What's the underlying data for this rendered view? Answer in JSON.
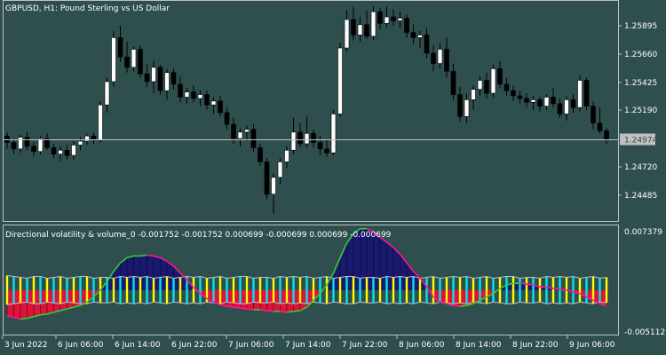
{
  "main_title": "GBPUSD, H1:  Pound Sterling vs US Dollar",
  "sub_title": "Directional volatility & volume_0 -0.001752 -0.001752 0.000699 -0.000699 0.000699 -0.000699",
  "colors": {
    "background": "#2f4f4f",
    "grid_frame": "#c0c0c0",
    "bull_candle": "#ffffff",
    "bear_candle": "#000000",
    "bid_line": "#c0c0c0",
    "price_tag_bg": "#c0c0c0",
    "price_tag_text": "#2f4f4f",
    "positive_fill": "#191970",
    "negative_fill": "#dc143c",
    "hist_up": "#ffff00",
    "hist_down": "#00e5ee",
    "volatility_up": "#32cd32",
    "volatility_down": "#ff1493",
    "band_edge": "#c0c0c0"
  },
  "price_axis": {
    "ticks": [
      "1.25895",
      "1.25660",
      "1.25425",
      "1.25190",
      "1.24720",
      "1.24485"
    ],
    "current_price": "1.24974"
  },
  "indicator_axis": {
    "top": "0.007379",
    "bottom": "-0.005112"
  },
  "time_axis": {
    "labels": [
      "3 Jun 2022",
      "6 Jun 06:00",
      "6 Jun 14:00",
      "6 Jun 22:00",
      "7 Jun 06:00",
      "7 Jun 14:00",
      "7 Jun 22:00",
      "8 Jun 06:00",
      "8 Jun 14:00",
      "8 Jun 22:00",
      "9 Jun 06:00"
    ]
  },
  "chart_data": {
    "type": "candlestick",
    "symbol": "GBPUSD",
    "timeframe": "H1",
    "price_range": [
      1.2435,
      1.2603
    ],
    "candles": [
      [
        1.25,
        1.2503,
        1.249,
        1.2495
      ],
      [
        1.2495,
        1.2498,
        1.2486,
        1.249
      ],
      [
        1.249,
        1.2501,
        1.2487,
        1.2499
      ],
      [
        1.2499,
        1.2503,
        1.2489,
        1.2492
      ],
      [
        1.2492,
        1.2495,
        1.2484,
        1.2488
      ],
      [
        1.2488,
        1.25,
        1.2486,
        1.2498
      ],
      [
        1.2498,
        1.2502,
        1.2489,
        1.2491
      ],
      [
        1.2491,
        1.2494,
        1.2483,
        1.2486
      ],
      [
        1.2486,
        1.2492,
        1.248,
        1.2489
      ],
      [
        1.2489,
        1.2493,
        1.2482,
        1.2485
      ],
      [
        1.2485,
        1.2496,
        1.2482,
        1.2493
      ],
      [
        1.2493,
        1.2499,
        1.2489,
        1.2496
      ],
      [
        1.2496,
        1.2502,
        1.2493,
        1.25
      ],
      [
        1.25,
        1.2503,
        1.2494,
        1.2497
      ],
      [
        1.2497,
        1.2527,
        1.2495,
        1.2524
      ],
      [
        1.2524,
        1.2545,
        1.2518,
        1.2542
      ],
      [
        1.2542,
        1.2581,
        1.2538,
        1.2576
      ],
      [
        1.2576,
        1.2585,
        1.2557,
        1.2561
      ],
      [
        1.2561,
        1.2573,
        1.2549,
        1.2553
      ],
      [
        1.2553,
        1.2569,
        1.255,
        1.2567
      ],
      [
        1.2567,
        1.257,
        1.2545,
        1.2548
      ],
      [
        1.2548,
        1.2556,
        1.2538,
        1.2542
      ],
      [
        1.2542,
        1.2558,
        1.2533,
        1.2553
      ],
      [
        1.2553,
        1.2555,
        1.2532,
        1.2535
      ],
      [
        1.2535,
        1.2552,
        1.2528,
        1.2549
      ],
      [
        1.2549,
        1.2552,
        1.2536,
        1.254
      ],
      [
        1.254,
        1.2546,
        1.2526,
        1.253
      ],
      [
        1.253,
        1.2537,
        1.2525,
        1.2534
      ],
      [
        1.2534,
        1.2539,
        1.2526,
        1.2529
      ],
      [
        1.2529,
        1.2535,
        1.2523,
        1.2532
      ],
      [
        1.2532,
        1.2535,
        1.252,
        1.2524
      ],
      [
        1.2524,
        1.253,
        1.2517,
        1.2527
      ],
      [
        1.2527,
        1.2531,
        1.2515,
        1.2518
      ],
      [
        1.2518,
        1.2522,
        1.2505,
        1.2509
      ],
      [
        1.2509,
        1.2514,
        1.2494,
        1.2498
      ],
      [
        1.2498,
        1.2506,
        1.2492,
        1.2503
      ],
      [
        1.2503,
        1.2508,
        1.2496,
        1.2505
      ],
      [
        1.2505,
        1.2509,
        1.2488,
        1.2491
      ],
      [
        1.2491,
        1.2494,
        1.2477,
        1.248
      ],
      [
        1.248,
        1.2483,
        1.2451,
        1.2455
      ],
      [
        1.2455,
        1.2471,
        1.244,
        1.2468
      ],
      [
        1.2468,
        1.2483,
        1.2463,
        1.248
      ],
      [
        1.248,
        1.2492,
        1.2475,
        1.2489
      ],
      [
        1.2489,
        1.2514,
        1.2486,
        1.2503
      ],
      [
        1.2503,
        1.251,
        1.2491,
        1.2494
      ],
      [
        1.2494,
        1.2515,
        1.2491,
        1.2502
      ],
      [
        1.2502,
        1.2505,
        1.2491,
        1.2495
      ],
      [
        1.2495,
        1.25,
        1.2485,
        1.249
      ],
      [
        1.249,
        1.2497,
        1.2484,
        1.2487
      ],
      [
        1.2487,
        1.252,
        1.2485,
        1.2517
      ],
      [
        1.2517,
        1.2572,
        1.2515,
        1.2568
      ],
      [
        1.2568,
        1.2597,
        1.2565,
        1.259
      ],
      [
        1.259,
        1.26,
        1.2574,
        1.2578
      ],
      [
        1.2578,
        1.2592,
        1.2573,
        1.2586
      ],
      [
        1.2586,
        1.2597,
        1.2575,
        1.2577
      ],
      [
        1.2577,
        1.26,
        1.2574,
        1.2596
      ],
      [
        1.2596,
        1.2599,
        1.2582,
        1.2587
      ],
      [
        1.2587,
        1.26,
        1.2584,
        1.2592
      ],
      [
        1.2592,
        1.2598,
        1.2585,
        1.2589
      ],
      [
        1.2589,
        1.2596,
        1.2583,
        1.2591
      ],
      [
        1.2591,
        1.2594,
        1.2576,
        1.258
      ],
      [
        1.258,
        1.2586,
        1.2571,
        1.2576
      ],
      [
        1.2576,
        1.2581,
        1.2568,
        1.2578
      ],
      [
        1.2578,
        1.2583,
        1.256,
        1.2564
      ],
      [
        1.2564,
        1.257,
        1.255,
        1.2556
      ],
      [
        1.2556,
        1.2572,
        1.2552,
        1.2567
      ],
      [
        1.2567,
        1.2576,
        1.2545,
        1.255
      ],
      [
        1.255,
        1.2556,
        1.2528,
        1.2532
      ],
      [
        1.2532,
        1.2538,
        1.2511,
        1.2515
      ],
      [
        1.2515,
        1.2533,
        1.251,
        1.2528
      ],
      [
        1.2528,
        1.2539,
        1.252,
        1.2536
      ],
      [
        1.2536,
        1.2546,
        1.2531,
        1.2543
      ],
      [
        1.2543,
        1.2549,
        1.2529,
        1.2533
      ],
      [
        1.2533,
        1.2555,
        1.253,
        1.2552
      ],
      [
        1.2552,
        1.2558,
        1.2537,
        1.254
      ],
      [
        1.254,
        1.2545,
        1.2531,
        1.2535
      ],
      [
        1.2535,
        1.2539,
        1.2527,
        1.2531
      ],
      [
        1.2531,
        1.2535,
        1.2525,
        1.2529
      ],
      [
        1.2529,
        1.2533,
        1.2522,
        1.2526
      ],
      [
        1.2526,
        1.2531,
        1.252,
        1.2528
      ],
      [
        1.2528,
        1.253,
        1.2519,
        1.2523
      ],
      [
        1.2523,
        1.2532,
        1.252,
        1.253
      ],
      [
        1.253,
        1.2537,
        1.2522,
        1.2525
      ],
      [
        1.2525,
        1.2529,
        1.2514,
        1.2517
      ],
      [
        1.2517,
        1.2531,
        1.2512,
        1.2528
      ],
      [
        1.2528,
        1.2532,
        1.2518,
        1.2522
      ],
      [
        1.2522,
        1.2547,
        1.2519,
        1.2543
      ],
      [
        1.2543,
        1.2545,
        1.252,
        1.2523
      ],
      [
        1.2523,
        1.2527,
        1.2505,
        1.251
      ],
      [
        1.251,
        1.2522,
        1.2502,
        1.2504
      ],
      [
        1.2504,
        1.2506,
        1.2494,
        1.2497
      ]
    ],
    "indicator": {
      "range": [
        -0.005112,
        0.007379
      ],
      "volatility": [
        -0.003,
        -0.0032,
        -0.0034,
        -0.0033,
        -0.0031,
        -0.0029,
        -0.0028,
        -0.0026,
        -0.0024,
        -0.0022,
        -0.002,
        -0.0018,
        -0.0014,
        -0.0008,
        0.0,
        0.001,
        0.0022,
        0.0032,
        0.0038,
        0.004,
        0.004,
        0.0041,
        0.004,
        0.0038,
        0.0034,
        0.0028,
        0.002,
        0.0012,
        0.0003,
        -0.0004,
        -0.001,
        -0.0014,
        -0.0017,
        -0.0019,
        -0.002,
        -0.0021,
        -0.0022,
        -0.0023,
        -0.0023,
        -0.0024,
        -0.0025,
        -0.0025,
        -0.0026,
        -0.0025,
        -0.0024,
        -0.002,
        -0.0012,
        -0.0004,
        0.0006,
        0.002,
        0.0038,
        0.0055,
        0.0066,
        0.0072,
        0.0072,
        0.0068,
        0.0062,
        0.0056,
        0.005,
        0.0042,
        0.0032,
        0.0022,
        0.0014,
        0.0004,
        -0.0008,
        -0.0014,
        -0.0016,
        -0.0018,
        -0.0019,
        -0.0018,
        -0.0016,
        -0.0012,
        -0.0008,
        -0.0004,
        0.0002,
        0.0006,
        0.0008,
        0.0008,
        0.0007,
        0.0006,
        0.0004,
        0.0003,
        0.0002,
        0.0001,
        0.0,
        -0.0002,
        -0.0004,
        -0.0008,
        -0.0012,
        -0.0016,
        -0.0018
      ],
      "histogram": [
        0.0017,
        -0.0016,
        0.0015,
        -0.0014,
        0.0016,
        -0.0016,
        0.0014,
        -0.0015,
        0.0016,
        -0.0014,
        0.0015,
        -0.0016,
        0.0016,
        -0.0014,
        0.0015,
        -0.0015,
        0.0014,
        -0.0016,
        0.0015,
        -0.0016,
        0.0015,
        -0.0016,
        0.0014,
        -0.0015,
        0.0016,
        -0.0014,
        0.0015,
        -0.0016,
        0.0015,
        -0.0016,
        0.0014,
        -0.0015,
        0.0016,
        -0.0014,
        0.0015,
        -0.0016,
        0.0016,
        -0.0014,
        0.0015,
        -0.0015,
        0.0014,
        -0.0016,
        0.0015,
        -0.0016,
        0.0015,
        -0.0016,
        0.0014,
        -0.0015,
        0.0016,
        -0.0014,
        0.0015,
        -0.0016,
        0.0016,
        -0.0014,
        0.0015,
        -0.0015,
        0.0014,
        -0.0016,
        0.0015,
        -0.0016,
        0.0015,
        -0.0016,
        0.0014,
        -0.0015,
        0.0016,
        -0.0014,
        0.0015,
        -0.0016,
        0.0015,
        -0.0016,
        0.0014,
        -0.0015,
        0.0016,
        -0.0014,
        0.0015,
        -0.0016,
        0.0016,
        -0.0014,
        0.0015,
        -0.0015,
        0.0014,
        -0.0016,
        0.0015,
        -0.0016,
        0.0015,
        -0.0016,
        0.0014,
        -0.0015,
        0.0016,
        -0.0014,
        0.0015
      ]
    }
  }
}
